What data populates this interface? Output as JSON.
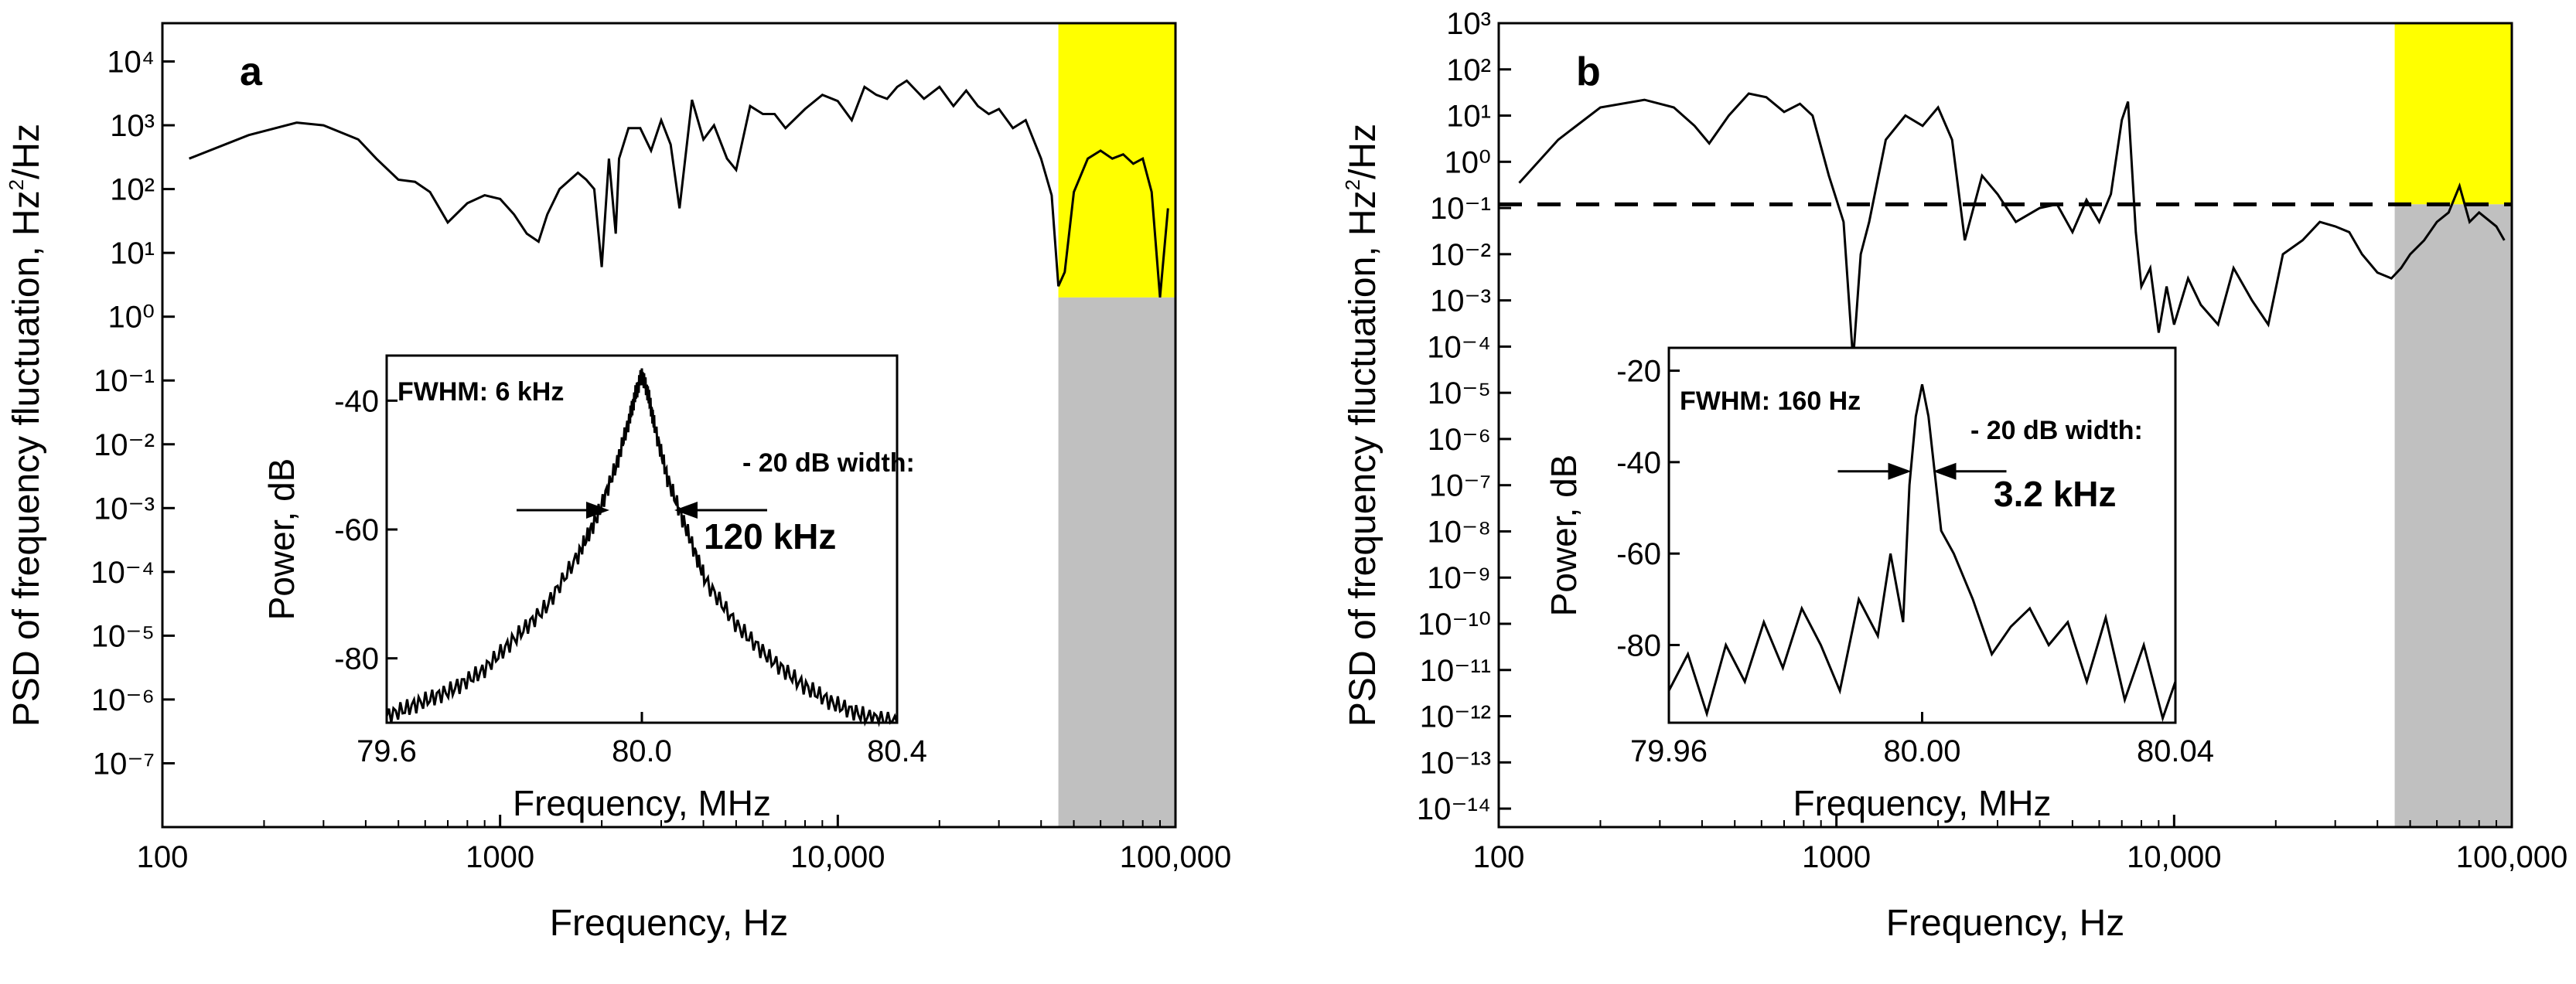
{
  "chart_data": [
    {
      "type": "line",
      "panel": "a",
      "title": "",
      "xlabel": "Frequency, Hz",
      "ylabel": "PSD of frequency fluctuation, Hz²/Hz",
      "ylabel_main": "PSD of frequency fluctuation, Hz",
      "ylabel_sup": "2",
      "ylabel_tail": "/Hz",
      "xscale": "log",
      "yscale": "log",
      "xlim": [
        100,
        100000
      ],
      "ylim_exp": [
        -8,
        4.6
      ],
      "x_ticks": [
        100,
        1000,
        10000,
        100000
      ],
      "x_tick_labels": [
        "100",
        "1000",
        "10,000",
        "100,000"
      ],
      "y_tick_exponents": [
        -7,
        -6,
        -5,
        -4,
        -3,
        -2,
        -1,
        0,
        1,
        2,
        3,
        4
      ],
      "shaded_region": {
        "x_start": 45000,
        "x_end": 100000,
        "upper_color": "#ffff00",
        "lower_color": "#c0c0c0"
      },
      "series": [
        {
          "name": "PSD",
          "x": [
            120,
            180,
            250,
            300,
            380,
            430,
            500,
            560,
            620,
            700,
            800,
            900,
            1000,
            1100,
            1200,
            1300,
            1380,
            1500,
            1700,
            1800,
            1900,
            2000,
            2100,
            2200,
            2250,
            2400,
            2600,
            2800,
            3000,
            3200,
            3400,
            3700,
            4000,
            4300,
            4700,
            5000,
            5500,
            6000,
            6500,
            7000,
            8000,
            9000,
            10000,
            11000,
            12000,
            13000,
            14000,
            15000,
            16000,
            18000,
            20000,
            22000,
            24000,
            26000,
            28000,
            30000,
            33000,
            36000,
            40000,
            43000,
            45000,
            47000,
            50000,
            55000,
            60000,
            65000,
            70000,
            75000,
            80000,
            85000,
            90000,
            95000
          ],
          "y": [
            300,
            700,
            1100,
            1000,
            600,
            300,
            140,
            130,
            90,
            30,
            60,
            80,
            70,
            40,
            20,
            15,
            40,
            100,
            180,
            140,
            100,
            6,
            300,
            20,
            300,
            900,
            900,
            400,
            1200,
            500,
            50,
            2500,
            600,
            1000,
            300,
            200,
            2000,
            1500,
            1500,
            900,
            1800,
            3000,
            2400,
            1200,
            4000,
            3000,
            2600,
            4000,
            5000,
            2600,
            4000,
            2000,
            3500,
            2000,
            1500,
            1800,
            900,
            1200,
            300,
            80,
            3,
            5,
            90,
            300,
            400,
            300,
            350,
            250,
            300,
            90,
            2,
            50
          ]
        }
      ],
      "inset": {
        "type": "line",
        "xlabel": "Frequency, MHz",
        "ylabel": "Power, dB",
        "xlim": [
          79.6,
          80.4
        ],
        "ylim": [
          -90,
          -33
        ],
        "x_ticks": [
          79.6,
          80.0,
          80.4
        ],
        "x_tick_labels": [
          "79.6",
          "80.0",
          "80.4"
        ],
        "y_ticks": [
          -40,
          -60,
          -80
        ],
        "y_tick_labels": [
          "-40",
          "-60",
          "-80"
        ],
        "fwhm_label": "FWHM: 6 kHz",
        "width_label": "- 20 dB width:",
        "width_value": "120 kHz",
        "marker_level_db": -57,
        "x": [
          79.6,
          79.65,
          79.7,
          79.75,
          79.8,
          79.85,
          79.9,
          79.93,
          79.96,
          79.98,
          79.99,
          80.0,
          80.01,
          80.02,
          80.04,
          80.07,
          80.1,
          80.15,
          80.2,
          80.25,
          80.3,
          80.35,
          80.4
        ],
        "y": [
          -89,
          -87,
          -85,
          -82,
          -77,
          -72,
          -64,
          -58,
          -50,
          -43,
          -39,
          -36,
          -39,
          -44,
          -52,
          -60,
          -68,
          -75,
          -80,
          -84,
          -87,
          -89,
          -90
        ]
      }
    },
    {
      "type": "line",
      "panel": "b",
      "title": "",
      "xlabel": "Frequency, Hz",
      "ylabel": "PSD of frequency fluctuation, Hz²/Hz",
      "ylabel_main": "PSD of frequency fluctuation, Hz",
      "ylabel_sup": "2",
      "ylabel_tail": "/Hz",
      "xscale": "log",
      "yscale": "log",
      "xlim": [
        100,
        100000
      ],
      "ylim_exp": [
        -14.4,
        3
      ],
      "x_ticks": [
        100,
        1000,
        10000,
        100000
      ],
      "x_tick_labels": [
        "100",
        "1000",
        "10,000",
        "100,000"
      ],
      "y_tick_exponents": [
        -14,
        -13,
        -12,
        -11,
        -10,
        -9,
        -8,
        -7,
        -6,
        -5,
        -4,
        -3,
        -2,
        -1,
        0,
        1,
        2,
        3
      ],
      "shaded_region": {
        "x_start": 45000,
        "x_end": 100000,
        "upper_color": "#ffff00",
        "lower_color": "#c0c0c0"
      },
      "reference_line": {
        "y": 0.12,
        "style": "dashed"
      },
      "series": [
        {
          "name": "PSD",
          "x": [
            115,
            150,
            200,
            270,
            330,
            380,
            420,
            480,
            550,
            620,
            700,
            780,
            850,
            950,
            1050,
            1120,
            1180,
            1250,
            1400,
            1600,
            1800,
            2000,
            2200,
            2400,
            2700,
            3000,
            3400,
            4000,
            4500,
            5000,
            5500,
            6000,
            6500,
            7000,
            7300,
            7700,
            8000,
            8500,
            9000,
            9500,
            10000,
            11000,
            12000,
            13500,
            15000,
            17000,
            19000,
            21000,
            24000,
            27000,
            30000,
            33000,
            36000,
            40000,
            44000,
            47000,
            50000,
            55000,
            60000,
            65000,
            70000,
            75000,
            80000,
            90000,
            95000
          ],
          "y": [
            0.35,
            3,
            15,
            22,
            15,
            6,
            2.5,
            10,
            30,
            25,
            12,
            18,
            10,
            0.5,
            0.05,
            5e-05,
            0.01,
            0.05,
            3,
            10,
            6,
            15,
            3,
            0.02,
            0.5,
            0.2,
            0.05,
            0.1,
            0.12,
            0.03,
            0.15,
            0.05,
            0.2,
            8,
            20,
            0.03,
            0.002,
            0.005,
            0.0002,
            0.002,
            0.0003,
            0.003,
            0.0008,
            0.0003,
            0.005,
            0.001,
            0.0003,
            0.01,
            0.02,
            0.05,
            0.04,
            0.03,
            0.01,
            0.004,
            0.003,
            0.005,
            0.01,
            0.02,
            0.05,
            0.08,
            0.3,
            0.05,
            0.08,
            0.04,
            0.02
          ]
        }
      ],
      "inset": {
        "type": "line",
        "xlabel": "Frequency, MHz",
        "ylabel": "Power, dB",
        "xlim": [
          79.96,
          80.04
        ],
        "ylim": [
          -97,
          -15
        ],
        "x_ticks": [
          79.96,
          80.0,
          80.04
        ],
        "x_tick_labels": [
          "79.96",
          "80.00",
          "80.04"
        ],
        "y_ticks": [
          -20,
          -40,
          -60,
          -80
        ],
        "y_tick_labels": [
          "-20",
          "-40",
          "-60",
          "-80"
        ],
        "fwhm_label": "FWHM: 160 Hz",
        "width_label": "- 20 dB width:",
        "width_value": "3.2 kHz",
        "marker_level_db": -42,
        "x": [
          79.96,
          79.963,
          79.966,
          79.969,
          79.972,
          79.975,
          79.978,
          79.981,
          79.984,
          79.987,
          79.99,
          79.993,
          79.995,
          79.997,
          79.998,
          79.999,
          80.0,
          80.001,
          80.003,
          80.005,
          80.008,
          80.011,
          80.014,
          80.017,
          80.02,
          80.023,
          80.026,
          80.029,
          80.032,
          80.035,
          80.038,
          80.04
        ],
        "y": [
          -90,
          -82,
          -95,
          -80,
          -88,
          -75,
          -85,
          -72,
          -80,
          -90,
          -70,
          -78,
          -60,
          -75,
          -45,
          -30,
          -23,
          -30,
          -55,
          -60,
          -70,
          -82,
          -76,
          -72,
          -80,
          -75,
          -88,
          -74,
          -92,
          -80,
          -96,
          -88
        ]
      }
    }
  ]
}
